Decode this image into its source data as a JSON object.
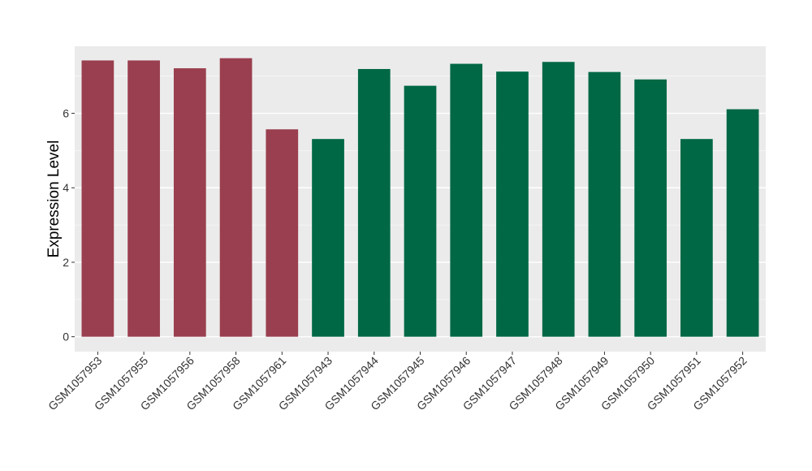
{
  "chart_data": {
    "type": "bar",
    "title": "",
    "xlabel": "",
    "ylabel": "Expression Level",
    "ylim": [
      -0.4,
      7.8
    ],
    "yticks": [
      0,
      2,
      4,
      6
    ],
    "grid": true,
    "legend": "none",
    "colors": {
      "panel_background": "#ebebeb",
      "grid_major": "#ffffff",
      "grid_minor": "#f5f5f5",
      "group_a": "#9a3f4f",
      "group_b": "#006845",
      "axis_text": "#333333",
      "axis_title": "#000000"
    },
    "categories": [
      "GSM1057953",
      "GSM1057955",
      "GSM1057956",
      "GSM1057958",
      "GSM1057961",
      "GSM1057943",
      "GSM1057944",
      "GSM1057945",
      "GSM1057946",
      "GSM1057947",
      "GSM1057948",
      "GSM1057949",
      "GSM1057950",
      "GSM1057951",
      "GSM1057952"
    ],
    "values": [
      7.42,
      7.42,
      7.21,
      7.48,
      5.57,
      5.31,
      7.19,
      6.74,
      7.33,
      7.12,
      7.38,
      7.11,
      6.91,
      5.31,
      6.11
    ],
    "bar_groups": [
      "a",
      "a",
      "a",
      "a",
      "a",
      "b",
      "b",
      "b",
      "b",
      "b",
      "b",
      "b",
      "b",
      "b",
      "b"
    ]
  }
}
